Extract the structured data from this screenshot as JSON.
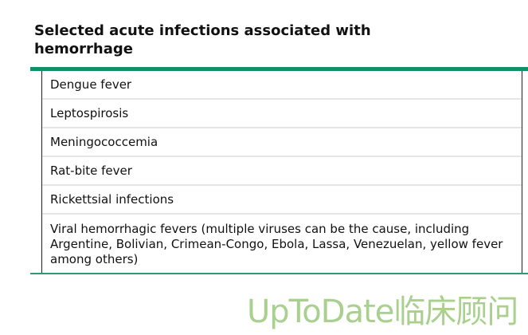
{
  "title": "Selected acute infections associated with hemorrhage",
  "rows": [
    "Dengue fever",
    "Leptospirosis",
    "Meningococcemia",
    "Rat-bite fever",
    "Rickettsial infections",
    "Viral hemorrhagic fevers (multiple viruses can be the cause, including Argentine, Bolivian, Crimean-Congo, Ebola, Lassa, Venezuelan, yellow fever among others)"
  ],
  "watermark": "UpToDate临床顾问",
  "colors": {
    "accent": "#0f9066",
    "watermark": "#a9d08e"
  }
}
